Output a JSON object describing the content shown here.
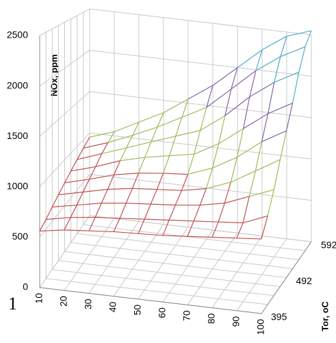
{
  "chart_data": {
    "type": "surface",
    "annotation": "1",
    "z_label": "NOx, ppm",
    "y_label": "Tor, oC",
    "x": [
      10,
      20,
      30,
      40,
      50,
      60,
      70,
      80,
      90,
      100
    ],
    "y": [
      395,
      null,
      null,
      null,
      492,
      null,
      null,
      null,
      592
    ],
    "values": [
      [
        560,
        600,
        620,
        640,
        650,
        660,
        680,
        700,
        720,
        740
      ],
      [
        600,
        650,
        680,
        700,
        720,
        740,
        760,
        780,
        800,
        900
      ],
      [
        650,
        700,
        750,
        780,
        800,
        820,
        850,
        900,
        1000,
        1100
      ],
      [
        700,
        760,
        820,
        860,
        880,
        900,
        950,
        1050,
        1200,
        1350
      ],
      [
        750,
        820,
        900,
        950,
        980,
        1000,
        1100,
        1250,
        1450,
        1600
      ],
      [
        800,
        880,
        980,
        1050,
        1100,
        1150,
        1300,
        1500,
        1700,
        1850
      ],
      [
        850,
        950,
        1050,
        1150,
        1250,
        1350,
        1550,
        1800,
        2000,
        2150
      ],
      [
        900,
        1000,
        1120,
        1250,
        1400,
        1550,
        1800,
        2050,
        2250,
        2400
      ],
      [
        950,
        1050,
        1200,
        1350,
        1550,
        1750,
        2000,
        2250,
        2450,
        2550
      ]
    ],
    "zlim": [
      0,
      2500
    ],
    "zticks": [
      0,
      500,
      1000,
      1500,
      2000,
      2500
    ],
    "band_colors": [
      "#4f81bd",
      "#c0504d",
      "#9bbb59",
      "#8064a2",
      "#4bacc6"
    ],
    "grid": true
  }
}
